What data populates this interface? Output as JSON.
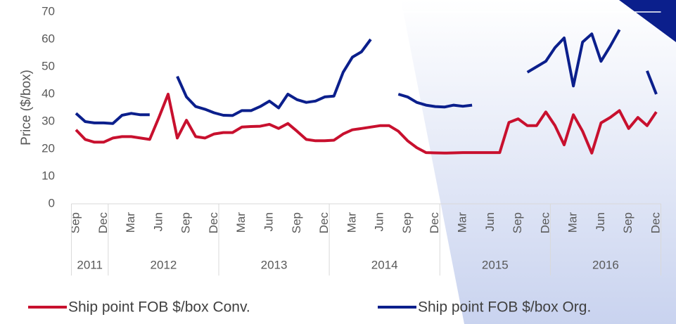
{
  "chart_data": {
    "type": "line",
    "y_label": "Price ($/box)",
    "categories": [
      "Sep",
      null,
      null,
      "Dec",
      null,
      null,
      "Mar",
      null,
      null,
      "Jun",
      null,
      null,
      "Sep",
      null,
      null,
      "Dec",
      null,
      null,
      "Mar",
      null,
      null,
      "Jun",
      null,
      null,
      "Sep",
      null,
      null,
      "Dec",
      null,
      null,
      "Mar",
      null,
      null,
      "Jun",
      null,
      null,
      "Sep",
      null,
      null,
      "Dec",
      null,
      null,
      "Mar",
      null,
      null,
      "Jun",
      null,
      null,
      "Sep",
      null,
      null,
      "Dec",
      null,
      null,
      "Mar",
      null,
      null,
      "Jun",
      null,
      null,
      "Sep",
      null,
      null,
      "Dec"
    ],
    "x_groups": [
      "2011",
      "2012",
      "2013",
      "2014",
      "2015",
      "2016"
    ],
    "series": [
      {
        "name": "Ship point FOB $/box Conv.",
        "color": "#c8102e",
        "values": [
          27,
          23.5,
          22.5,
          22.5,
          24,
          24.5,
          24.5,
          24,
          23.5,
          31.5,
          40,
          24,
          30.5,
          24.5,
          24,
          25.5,
          26,
          26,
          28,
          28.2,
          28.3,
          29,
          27.5,
          29.3,
          26.5,
          23.5,
          23,
          23,
          23.2,
          25.5,
          27,
          27.5,
          28,
          28.5,
          28.5,
          26.5,
          23,
          20.5,
          18.7,
          18.6,
          18.5,
          18.6,
          18.7,
          18.7,
          18.7,
          18.7,
          18.7,
          29.7,
          31,
          28.5,
          28.5,
          33.5,
          28.5,
          21.5,
          32.5,
          26.5,
          18.5,
          29.5,
          31.5,
          34,
          27.5,
          31.5,
          28.5,
          33.5
        ]
      },
      {
        "name": "Ship point FOB $/box Org.",
        "color": "#0b1f8c",
        "values": [
          33,
          30,
          29.5,
          29.5,
          29.3,
          32.3,
          33,
          32.5,
          32.5,
          null,
          null,
          46.5,
          39,
          35.5,
          34.5,
          33.2,
          32.3,
          32.2,
          34,
          34,
          35.5,
          37.5,
          35,
          40,
          38,
          37,
          37.5,
          39,
          39.3,
          48,
          53.5,
          55.5,
          60,
          null,
          null,
          40,
          39,
          37,
          36,
          35.5,
          35.3,
          36,
          35.6,
          36,
          null,
          null,
          null,
          null,
          null,
          48,
          50,
          52,
          57,
          60.5,
          43,
          59,
          62,
          52,
          57.5,
          63.5,
          null,
          null,
          48.5,
          40
        ]
      }
    ],
    "ylim": [
      0,
      70
    ],
    "yticks": [
      0,
      10,
      20,
      30,
      40,
      50,
      60,
      70
    ],
    "grid": false
  }
}
